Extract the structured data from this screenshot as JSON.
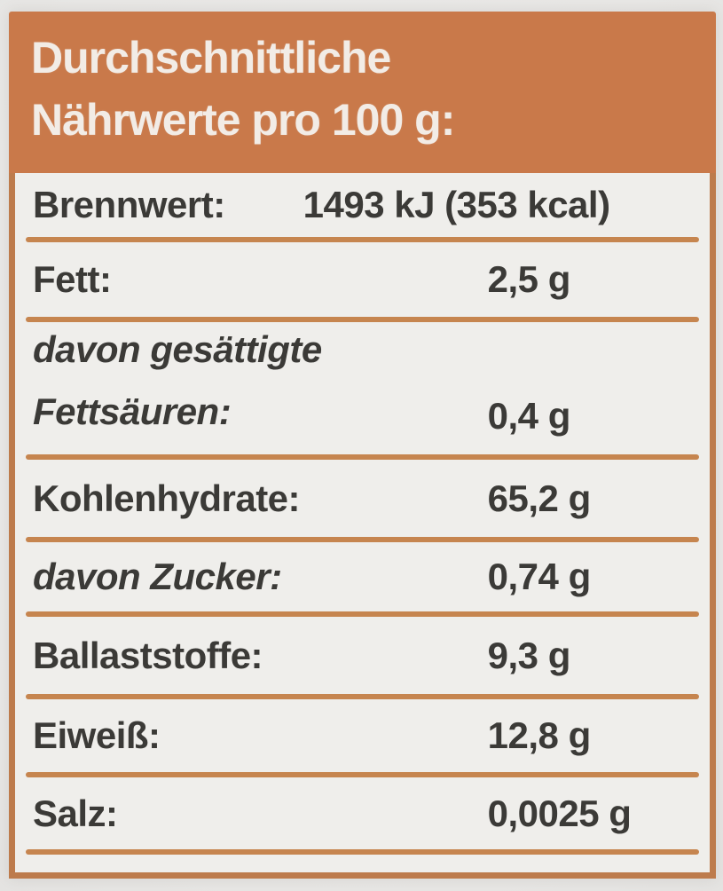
{
  "label": {
    "header": {
      "line1": "Durchschnittliche",
      "line2": "Nährwerte pro 100 g:"
    },
    "table": {
      "rows": [
        {
          "label": "Brennwert:",
          "value": "1493 kJ (353 kcal)",
          "italic": false
        },
        {
          "label": "Fett:",
          "value": "2,5 g",
          "italic": false
        },
        {
          "label": "davon gesättigte Fettsäuren:",
          "value": "0,4 g",
          "italic": true
        },
        {
          "label": "Kohlenhydrate:",
          "value": "65,2 g",
          "italic": false
        },
        {
          "label": "davon Zucker:",
          "value": "0,74 g",
          "italic": true
        },
        {
          "label": "Ballaststoffe:",
          "value": "9,3 g",
          "italic": false
        },
        {
          "label": "Eiweiß:",
          "value": "12,8 g",
          "italic": false
        },
        {
          "label": "Salz:",
          "value": "0,0025 g",
          "italic": false
        }
      ]
    },
    "colors": {
      "header_bg": "#c9794a",
      "header_text": "#f2ece6",
      "line": "#c6854f",
      "border": "#bd7b4c",
      "text": "#3b3a37",
      "table_bg": "#efeeeb",
      "photo_bg": "#e7e6e4"
    }
  }
}
